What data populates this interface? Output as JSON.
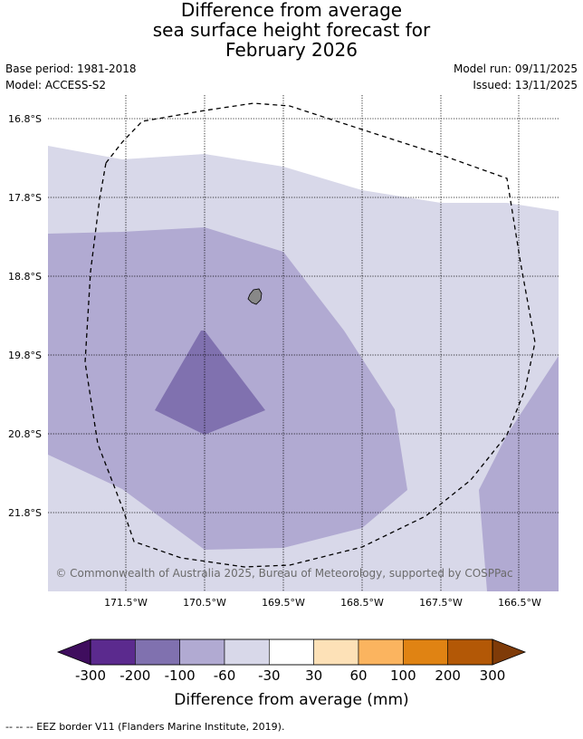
{
  "title": {
    "line1": "Difference from average",
    "line2": "sea surface height forecast for",
    "line3": "February 2026"
  },
  "meta": {
    "base_period": "Base period: 1981-2018",
    "model": "Model: ACCESS-S2",
    "model_run": "Model run: 09/11/2025",
    "issued": "Issued: 13/11/2025"
  },
  "map": {
    "lat_labels": [
      "16.8°S",
      "17.8°S",
      "18.8°S",
      "19.8°S",
      "20.8°S",
      "21.8°S"
    ],
    "lon_labels": [
      "171.5°W",
      "170.5°W",
      "169.5°W",
      "168.5°W",
      "167.5°W",
      "166.5°W"
    ],
    "copyright": "© Commonwealth of Australia 2025, Bureau of Meteorology, supported by COSPPac",
    "fill_colors": {
      "band_minus60_minus30": "#d8d8e9",
      "band_minus100_minus60": "#b1aad2",
      "band_minus200_minus100": "#8071af",
      "land": "#888888"
    }
  },
  "colorbar": {
    "ticks": [
      "-300",
      "-200",
      "-100",
      "-60",
      "-30",
      "30",
      "60",
      "100",
      "200",
      "300"
    ],
    "colors": [
      "#3f0d5e",
      "#5b2a8e",
      "#8071af",
      "#b1aad2",
      "#d8d8e9",
      "#ffffff",
      "#fde1b7",
      "#fbb45f",
      "#e08313",
      "#b35806",
      "#7f3b08"
    ],
    "label": "Difference from average (mm)"
  },
  "footnote": "--  --  -- EEZ border V11 (Flanders Marine Institute, 2019)."
}
